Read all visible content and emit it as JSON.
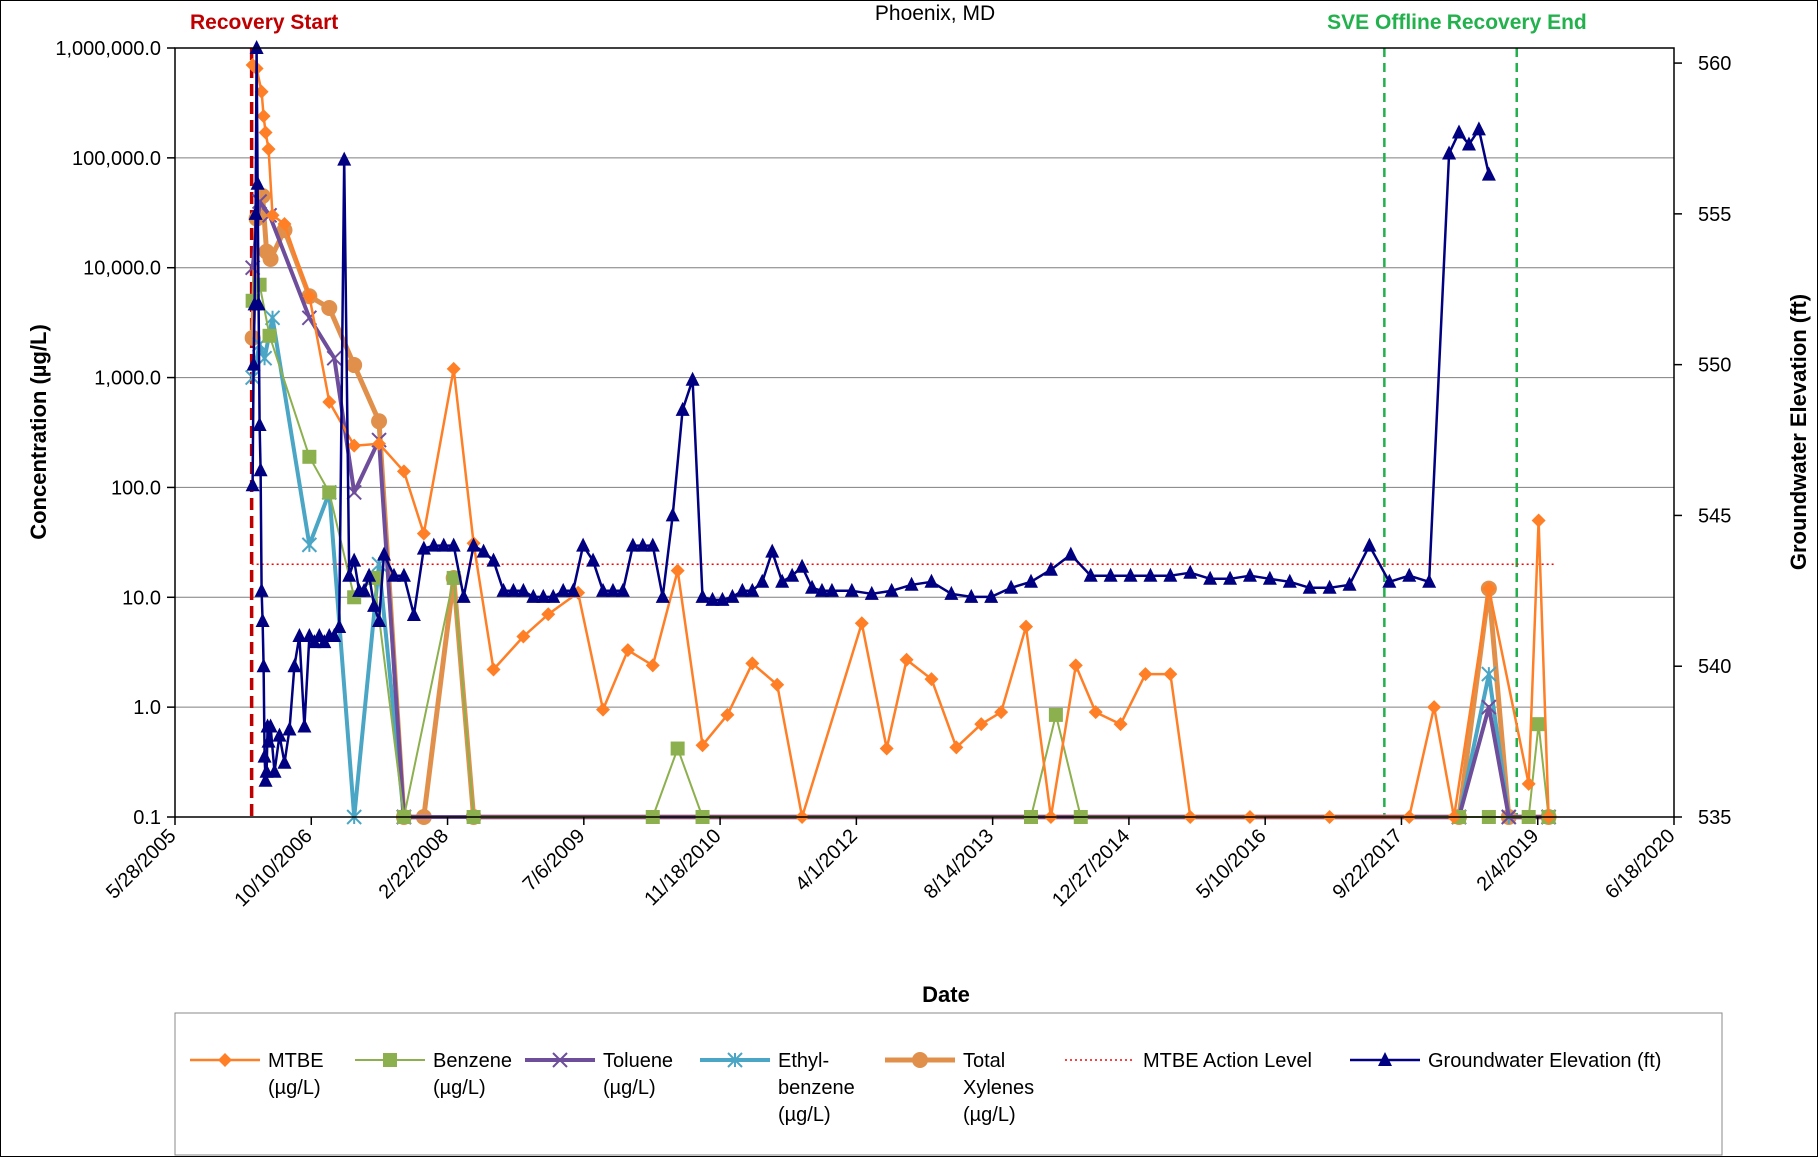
{
  "chart_data": {
    "type": "line",
    "subtitle": "Phoenix, MD",
    "xlabel": "Date",
    "ylabel": "Concentration (µg/L)",
    "y2label": "Groundwater Elevation (ft)",
    "x_tick_labels": [
      "5/28/2005",
      "10/10/2006",
      "2/22/2008",
      "7/6/2009",
      "11/18/2010",
      "4/1/2012",
      "8/14/2013",
      "12/27/2014",
      "5/10/2016",
      "9/22/2017",
      "2/4/2019",
      "6/18/2020"
    ],
    "y_tick_labels": [
      "1,000,000.0",
      "100,000.0",
      "10,000.0",
      "1,000.0",
      "100.0",
      "10.0",
      "1.0",
      "0.1"
    ],
    "y2_tick_labels": [
      "560",
      "555",
      "550",
      "545",
      "540",
      "535"
    ],
    "ylim": [
      0.1,
      1000000
    ],
    "yscale": "log",
    "y2lim": [
      535,
      560.5
    ],
    "grid": true,
    "legend_position": "bottom",
    "events": [
      {
        "label": "Recovery Start",
        "x": 2006.17,
        "color": "#c00000"
      },
      {
        "label": "SVE Offline",
        "x": 2017.55,
        "color": "#22b14c"
      },
      {
        "label": "Recovery End",
        "x": 2018.88,
        "color": "#22b14c"
      }
    ],
    "action_level": {
      "name": "MTBE Action Level",
      "value": 20,
      "x_range": [
        2006.17,
        2019.25
      ]
    },
    "series": [
      {
        "name": "MTBE (µg/L)",
        "legend": [
          "MTBE",
          "(µg/L)"
        ],
        "color": "#ff7f27",
        "marker": "diamond",
        "points": [
          [
            2006.18,
            700000
          ],
          [
            2006.22,
            650000
          ],
          [
            2006.27,
            400000
          ],
          [
            2006.29,
            240000
          ],
          [
            2006.31,
            170000
          ],
          [
            2006.34,
            120000
          ],
          [
            2006.38,
            30000
          ],
          [
            2006.5,
            25000
          ],
          [
            2006.75,
            5500
          ],
          [
            2006.95,
            600
          ],
          [
            2007.2,
            240
          ],
          [
            2007.45,
            250
          ],
          [
            2007.7,
            140
          ],
          [
            2007.9,
            38
          ],
          [
            2008.2,
            1200
          ],
          [
            2008.4,
            31
          ],
          [
            2008.6,
            2.2
          ],
          [
            2008.9,
            4.4
          ],
          [
            2009.15,
            7
          ],
          [
            2009.45,
            11
          ],
          [
            2009.7,
            0.95
          ],
          [
            2009.95,
            3.3
          ],
          [
            2010.2,
            2.4
          ],
          [
            2010.45,
            17.5
          ],
          [
            2010.7,
            0.45
          ],
          [
            2010.95,
            0.85
          ],
          [
            2011.2,
            2.5
          ],
          [
            2011.45,
            1.6
          ],
          [
            2011.7,
            0.1
          ],
          [
            2012.3,
            5.8
          ],
          [
            2012.55,
            0.42
          ],
          [
            2012.75,
            2.7
          ],
          [
            2013.0,
            1.8
          ],
          [
            2013.25,
            0.43
          ],
          [
            2013.5,
            0.7
          ],
          [
            2013.7,
            0.9
          ],
          [
            2013.95,
            5.4
          ],
          [
            2014.2,
            0.1
          ],
          [
            2014.45,
            2.4
          ],
          [
            2014.65,
            0.9
          ],
          [
            2014.9,
            0.7
          ],
          [
            2015.15,
            2.0
          ],
          [
            2015.4,
            2.0
          ],
          [
            2015.6,
            0.1
          ],
          [
            2016.2,
            0.1
          ],
          [
            2017.0,
            0.1
          ],
          [
            2017.8,
            0.1
          ],
          [
            2018.05,
            1.0
          ],
          [
            2018.25,
            0.1
          ],
          [
            2018.6,
            12
          ],
          [
            2019.0,
            0.2
          ],
          [
            2019.1,
            50
          ],
          [
            2019.2,
            0.1
          ]
        ]
      },
      {
        "name": "Benzene (µg/L)",
        "legend": [
          "Benzene",
          "(µg/L)"
        ],
        "color": "#8db04e",
        "marker": "square",
        "points": [
          [
            2006.18,
            5000
          ],
          [
            2006.25,
            7000
          ],
          [
            2006.35,
            2400
          ],
          [
            2006.75,
            190
          ],
          [
            2006.95,
            90
          ],
          [
            2007.2,
            10
          ],
          [
            2007.4,
            15
          ],
          [
            2007.7,
            0.1
          ],
          [
            2008.2,
            15
          ],
          [
            2008.4,
            0.1
          ],
          [
            2010.2,
            0.1
          ],
          [
            2010.45,
            0.42
          ],
          [
            2010.7,
            0.1
          ],
          [
            2014.0,
            0.1
          ],
          [
            2014.25,
            0.85
          ],
          [
            2014.5,
            0.1
          ],
          [
            2018.3,
            0.1
          ],
          [
            2018.6,
            0.1
          ],
          [
            2019.0,
            0.1
          ],
          [
            2019.1,
            0.7
          ],
          [
            2019.2,
            0.1
          ]
        ]
      },
      {
        "name": "Toluene (µg/L)",
        "legend": [
          "Toluene",
          "(µg/L)"
        ],
        "color": "#6e4e9b",
        "marker": "x",
        "points": [
          [
            2006.18,
            10000
          ],
          [
            2006.25,
            40000
          ],
          [
            2006.35,
            30000
          ],
          [
            2006.75,
            3500
          ],
          [
            2007.0,
            1500
          ],
          [
            2007.2,
            90
          ],
          [
            2007.45,
            270
          ],
          [
            2007.7,
            0.1
          ],
          [
            2018.3,
            0.1
          ],
          [
            2018.6,
            1.0
          ],
          [
            2018.8,
            0.1
          ],
          [
            2019.2,
            0.1
          ]
        ]
      },
      {
        "name": "Ethyl-benzene (µg/L)",
        "legend": [
          "Ethyl-",
          "benzene",
          "(µg/L)"
        ],
        "color": "#4aa6c4",
        "marker": "star",
        "points": [
          [
            2006.18,
            1000
          ],
          [
            2006.25,
            2000
          ],
          [
            2006.3,
            1500
          ],
          [
            2006.38,
            3500
          ],
          [
            2006.75,
            30
          ],
          [
            2006.95,
            90
          ],
          [
            2007.2,
            0.1
          ],
          [
            2007.45,
            20
          ],
          [
            2007.7,
            0.1
          ],
          [
            2018.3,
            0.1
          ],
          [
            2018.6,
            2.0
          ],
          [
            2018.8,
            0.1
          ],
          [
            2019.2,
            0.1
          ]
        ]
      },
      {
        "name": "Total Xylenes (µg/L)",
        "legend": [
          "Total",
          "Xylenes",
          "(µg/L)"
        ],
        "color": "#e0904a",
        "marker": "circle",
        "points": [
          [
            2006.18,
            2300
          ],
          [
            2006.22,
            28000
          ],
          [
            2006.28,
            45000
          ],
          [
            2006.32,
            14000
          ],
          [
            2006.36,
            12000
          ],
          [
            2006.5,
            22000
          ],
          [
            2006.75,
            5500
          ],
          [
            2006.95,
            4300
          ],
          [
            2007.2,
            1300
          ],
          [
            2007.45,
            400
          ],
          [
            2007.7,
            0.1
          ],
          [
            2007.9,
            0.1
          ],
          [
            2008.2,
            15
          ],
          [
            2008.4,
            0.1
          ],
          [
            2018.3,
            0.1
          ],
          [
            2018.6,
            12
          ],
          [
            2018.8,
            0.1
          ],
          [
            2019.2,
            0.1
          ]
        ]
      },
      {
        "name": "Groundwater Elevation (ft)",
        "legend": [
          "Groundwater Elevation (ft)"
        ],
        "color": "#000080",
        "marker": "triangle",
        "axis": "y2",
        "points": [
          [
            2006.18,
            546
          ],
          [
            2006.19,
            550
          ],
          [
            2006.2,
            552
          ],
          [
            2006.21,
            555
          ],
          [
            2006.22,
            560.5
          ],
          [
            2006.23,
            556
          ],
          [
            2006.24,
            552
          ],
          [
            2006.25,
            548
          ],
          [
            2006.26,
            546.5
          ],
          [
            2006.27,
            542.5
          ],
          [
            2006.28,
            541.5
          ],
          [
            2006.29,
            540
          ],
          [
            2006.3,
            537
          ],
          [
            2006.31,
            536.2
          ],
          [
            2006.32,
            536.5
          ],
          [
            2006.33,
            538
          ],
          [
            2006.34,
            537.5
          ],
          [
            2006.36,
            538
          ],
          [
            2006.4,
            536.5
          ],
          [
            2006.45,
            537.7
          ],
          [
            2006.5,
            536.8
          ],
          [
            2006.55,
            537.9
          ],
          [
            2006.6,
            540
          ],
          [
            2006.65,
            541
          ],
          [
            2006.7,
            538
          ],
          [
            2006.75,
            541
          ],
          [
            2006.8,
            540.8
          ],
          [
            2006.85,
            541
          ],
          [
            2006.9,
            540.8
          ],
          [
            2006.95,
            541
          ],
          [
            2007.0,
            541
          ],
          [
            2007.05,
            541.3
          ],
          [
            2007.1,
            556.8
          ],
          [
            2007.15,
            543
          ],
          [
            2007.2,
            543.5
          ],
          [
            2007.25,
            542.5
          ],
          [
            2007.3,
            542.5
          ],
          [
            2007.35,
            543
          ],
          [
            2007.4,
            542
          ],
          [
            2007.45,
            541.5
          ],
          [
            2007.5,
            543.7
          ],
          [
            2007.6,
            543
          ],
          [
            2007.7,
            543
          ],
          [
            2007.8,
            541.7
          ],
          [
            2007.9,
            543.9
          ],
          [
            2008.0,
            544
          ],
          [
            2008.1,
            544
          ],
          [
            2008.2,
            544
          ],
          [
            2008.3,
            542.3
          ],
          [
            2008.4,
            544
          ],
          [
            2008.5,
            543.8
          ],
          [
            2008.6,
            543.5
          ],
          [
            2008.7,
            542.5
          ],
          [
            2008.8,
            542.5
          ],
          [
            2008.9,
            542.5
          ],
          [
            2009.0,
            542.3
          ],
          [
            2009.1,
            542.3
          ],
          [
            2009.2,
            542.3
          ],
          [
            2009.3,
            542.5
          ],
          [
            2009.4,
            542.5
          ],
          [
            2009.5,
            544
          ],
          [
            2009.6,
            543.5
          ],
          [
            2009.7,
            542.5
          ],
          [
            2009.8,
            542.5
          ],
          [
            2009.9,
            542.5
          ],
          [
            2010.0,
            544
          ],
          [
            2010.1,
            544
          ],
          [
            2010.2,
            544
          ],
          [
            2010.3,
            542.3
          ],
          [
            2010.4,
            545
          ],
          [
            2010.5,
            548.5
          ],
          [
            2010.6,
            549.5
          ],
          [
            2010.7,
            542.3
          ],
          [
            2010.8,
            542.2
          ],
          [
            2010.9,
            542.2
          ],
          [
            2011.0,
            542.3
          ],
          [
            2011.1,
            542.5
          ],
          [
            2011.2,
            542.5
          ],
          [
            2011.3,
            542.8
          ],
          [
            2011.4,
            543.8
          ],
          [
            2011.5,
            542.8
          ],
          [
            2011.6,
            543
          ],
          [
            2011.7,
            543.3
          ],
          [
            2011.8,
            542.6
          ],
          [
            2011.9,
            542.5
          ],
          [
            2012.0,
            542.5
          ],
          [
            2012.2,
            542.5
          ],
          [
            2012.4,
            542.4
          ],
          [
            2012.6,
            542.5
          ],
          [
            2012.8,
            542.7
          ],
          [
            2013.0,
            542.8
          ],
          [
            2013.2,
            542.4
          ],
          [
            2013.4,
            542.3
          ],
          [
            2013.6,
            542.3
          ],
          [
            2013.8,
            542.6
          ],
          [
            2014.0,
            542.8
          ],
          [
            2014.2,
            543.2
          ],
          [
            2014.4,
            543.7
          ],
          [
            2014.6,
            543
          ],
          [
            2014.8,
            543
          ],
          [
            2015.0,
            543
          ],
          [
            2015.2,
            543
          ],
          [
            2015.4,
            543
          ],
          [
            2015.6,
            543.1
          ],
          [
            2015.8,
            542.9
          ],
          [
            2016.0,
            542.9
          ],
          [
            2016.2,
            543
          ],
          [
            2016.4,
            542.9
          ],
          [
            2016.6,
            542.8
          ],
          [
            2016.8,
            542.6
          ],
          [
            2017.0,
            542.6
          ],
          [
            2017.2,
            542.7
          ],
          [
            2017.4,
            544
          ],
          [
            2017.6,
            542.8
          ],
          [
            2017.8,
            543
          ],
          [
            2018.0,
            542.8
          ],
          [
            2018.2,
            557
          ],
          [
            2018.3,
            557.7
          ],
          [
            2018.4,
            557.3
          ],
          [
            2018.5,
            557.8
          ],
          [
            2018.6,
            556.3
          ]
        ]
      }
    ]
  }
}
